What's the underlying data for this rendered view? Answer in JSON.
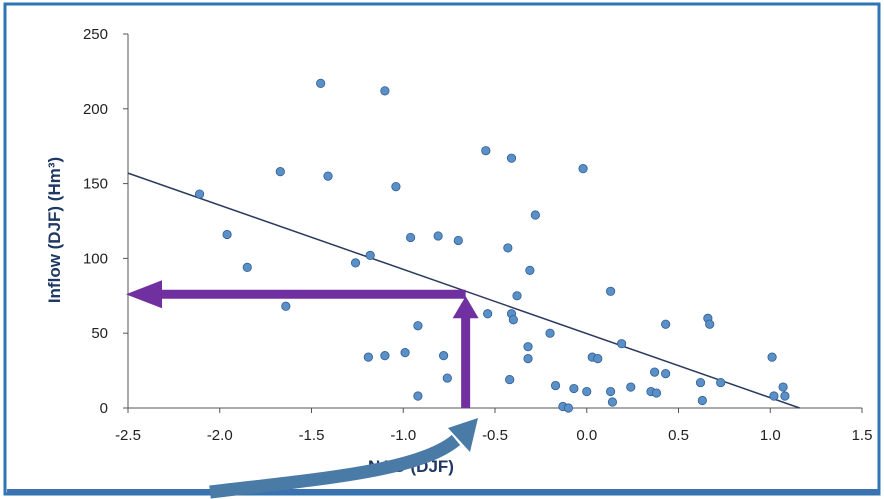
{
  "chart_data": {
    "type": "scatter",
    "xlabel": "NAO (DJF)",
    "ylabel": "Inflow (DJF)  (Hm³)",
    "xlim": [
      -2.5,
      1.5
    ],
    "ylim": [
      0,
      250
    ],
    "x_ticks": [
      "-2.5",
      "-2.0",
      "-1.5",
      "-1.0",
      "-0.5",
      "0.0",
      "0.5",
      "1.0",
      "1.5"
    ],
    "y_ticks": [
      "0",
      "50",
      "100",
      "150",
      "200",
      "250"
    ],
    "grid": false,
    "legend": "none",
    "points": [
      {
        "x": -2.11,
        "y": 143
      },
      {
        "x": -1.96,
        "y": 116
      },
      {
        "x": -1.85,
        "y": 94
      },
      {
        "x": -1.67,
        "y": 158
      },
      {
        "x": -1.64,
        "y": 68
      },
      {
        "x": -1.45,
        "y": 217
      },
      {
        "x": -1.41,
        "y": 155
      },
      {
        "x": -1.26,
        "y": 97
      },
      {
        "x": -1.18,
        "y": 102
      },
      {
        "x": -1.19,
        "y": 34
      },
      {
        "x": -1.1,
        "y": 212
      },
      {
        "x": -1.1,
        "y": 35
      },
      {
        "x": -1.04,
        "y": 148
      },
      {
        "x": -0.99,
        "y": 37
      },
      {
        "x": -0.96,
        "y": 114
      },
      {
        "x": -0.92,
        "y": 55
      },
      {
        "x": -0.92,
        "y": 8
      },
      {
        "x": -0.81,
        "y": 115
      },
      {
        "x": -0.78,
        "y": 35
      },
      {
        "x": -0.76,
        "y": 20
      },
      {
        "x": -0.7,
        "y": 112
      },
      {
        "x": -0.55,
        "y": 172
      },
      {
        "x": -0.54,
        "y": 63
      },
      {
        "x": -0.43,
        "y": 107
      },
      {
        "x": -0.42,
        "y": 19
      },
      {
        "x": -0.41,
        "y": 167
      },
      {
        "x": -0.41,
        "y": 63
      },
      {
        "x": -0.4,
        "y": 59
      },
      {
        "x": -0.38,
        "y": 75
      },
      {
        "x": -0.32,
        "y": 41
      },
      {
        "x": -0.32,
        "y": 33
      },
      {
        "x": -0.31,
        "y": 92
      },
      {
        "x": -0.28,
        "y": 129
      },
      {
        "x": -0.2,
        "y": 50
      },
      {
        "x": -0.17,
        "y": 15
      },
      {
        "x": -0.13,
        "y": 1
      },
      {
        "x": -0.1,
        "y": 0
      },
      {
        "x": -0.07,
        "y": 13
      },
      {
        "x": -0.02,
        "y": 160
      },
      {
        "x": 0.0,
        "y": 11
      },
      {
        "x": 0.03,
        "y": 34
      },
      {
        "x": 0.06,
        "y": 33
      },
      {
        "x": 0.13,
        "y": 11
      },
      {
        "x": 0.13,
        "y": 78
      },
      {
        "x": 0.14,
        "y": 4
      },
      {
        "x": 0.19,
        "y": 43
      },
      {
        "x": 0.24,
        "y": 14
      },
      {
        "x": 0.35,
        "y": 11
      },
      {
        "x": 0.37,
        "y": 24
      },
      {
        "x": 0.38,
        "y": 10
      },
      {
        "x": 0.43,
        "y": 56
      },
      {
        "x": 0.43,
        "y": 23
      },
      {
        "x": 0.62,
        "y": 17
      },
      {
        "x": 0.63,
        "y": 5
      },
      {
        "x": 0.66,
        "y": 60
      },
      {
        "x": 0.67,
        "y": 56
      },
      {
        "x": 0.73,
        "y": 17
      },
      {
        "x": 1.01,
        "y": 34
      },
      {
        "x": 1.02,
        "y": 8
      },
      {
        "x": 1.07,
        "y": 14
      },
      {
        "x": 1.08,
        "y": 8
      }
    ],
    "trendline": {
      "x": [
        -2.5,
        1.16
      ],
      "y": [
        157,
        0
      ]
    },
    "annotations": {
      "vertical_arrow": {
        "x": -0.66,
        "y_from": 0,
        "y_to": 76
      },
      "horizontal_arrow": {
        "y": 76,
        "x_from": -0.66,
        "x_to": -2.5
      }
    },
    "colors": {
      "points": "#5b8fc7",
      "point_stroke": "#2e5f93",
      "trendline": "#2b3a5e",
      "annotation_arrows": "#7030a0",
      "curved_arrow": "#4a7aa6",
      "frame": "#2e75b6"
    }
  }
}
